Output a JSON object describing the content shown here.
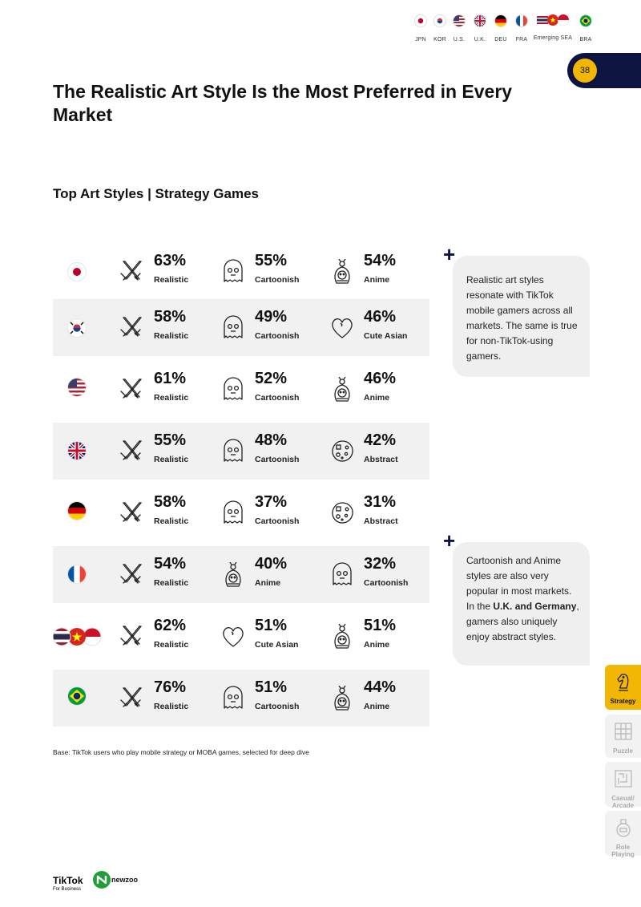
{
  "legend": {
    "items": [
      {
        "code": "JPN"
      },
      {
        "code": "KOR"
      },
      {
        "code": "U.S."
      },
      {
        "code": "U.K."
      },
      {
        "code": "DEU"
      },
      {
        "code": "FRA"
      },
      {
        "code": "Emerging SEA"
      },
      {
        "code": "BRA"
      }
    ]
  },
  "page": {
    "number": "38"
  },
  "title": "The Realistic Art Style Is the Most Preferred in Every Market",
  "subtitle": "Top Art Styles | Strategy Games",
  "rows": [
    {
      "country": "JPN",
      "cells": [
        {
          "pct": "63%",
          "label": "Realistic",
          "icon": "swords-icon"
        },
        {
          "pct": "55%",
          "label": "Cartoonish",
          "icon": "ghost-icon"
        },
        {
          "pct": "54%",
          "label": "Anime",
          "icon": "anime-character-icon"
        }
      ]
    },
    {
      "country": "KOR",
      "cells": [
        {
          "pct": "58%",
          "label": "Realistic",
          "icon": "swords-icon"
        },
        {
          "pct": "49%",
          "label": "Cartoonish",
          "icon": "ghost-icon"
        },
        {
          "pct": "46%",
          "label": "Cute Asian",
          "icon": "heart-icon"
        }
      ]
    },
    {
      "country": "U.S.",
      "cells": [
        {
          "pct": "61%",
          "label": "Realistic",
          "icon": "swords-icon"
        },
        {
          "pct": "52%",
          "label": "Cartoonish",
          "icon": "ghost-icon"
        },
        {
          "pct": "46%",
          "label": "Anime",
          "icon": "anime-character-icon"
        }
      ]
    },
    {
      "country": "U.K.",
      "cells": [
        {
          "pct": "55%",
          "label": "Realistic",
          "icon": "swords-icon"
        },
        {
          "pct": "48%",
          "label": "Cartoonish",
          "icon": "ghost-icon"
        },
        {
          "pct": "42%",
          "label": "Abstract",
          "icon": "abstract-palette-icon"
        }
      ]
    },
    {
      "country": "DEU",
      "cells": [
        {
          "pct": "58%",
          "label": "Realistic",
          "icon": "swords-icon"
        },
        {
          "pct": "37%",
          "label": "Cartoonish",
          "icon": "ghost-icon"
        },
        {
          "pct": "31%",
          "label": "Abstract",
          "icon": "abstract-palette-icon"
        }
      ]
    },
    {
      "country": "FRA",
      "cells": [
        {
          "pct": "54%",
          "label": "Realistic",
          "icon": "swords-icon"
        },
        {
          "pct": "40%",
          "label": "Anime",
          "icon": "anime-character-icon"
        },
        {
          "pct": "32%",
          "label": "Cartoonish",
          "icon": "ghost-icon"
        }
      ]
    },
    {
      "country": "Emerging SEA",
      "cells": [
        {
          "pct": "62%",
          "label": "Realistic",
          "icon": "swords-icon"
        },
        {
          "pct": "51%",
          "label": "Cute Asian",
          "icon": "heart-icon"
        },
        {
          "pct": "51%",
          "label": "Anime",
          "icon": "anime-character-icon"
        }
      ]
    },
    {
      "country": "BRA",
      "cells": [
        {
          "pct": "76%",
          "label": "Realistic",
          "icon": "swords-icon"
        },
        {
          "pct": "51%",
          "label": "Cartoonish",
          "icon": "ghost-icon"
        },
        {
          "pct": "44%",
          "label": "Anime",
          "icon": "anime-character-icon"
        }
      ]
    }
  ],
  "callouts": {
    "first": {
      "text": "Realistic art styles resonate with TikTok mobile gamers across all markets. The same is true for non-TikTok-using gamers."
    },
    "second": {
      "text_before": "Cartoonish and Anime styles are also very popular in most markets. In the ",
      "bold": "U.K. and Germany",
      "text_after": ", gamers also uniquely enjoy abstract styles."
    }
  },
  "base_note": "Base: TikTok users who play mobile strategy or MOBA games, selected for deep dive",
  "side_nav": {
    "items": [
      {
        "label": "Strategy",
        "active": true
      },
      {
        "label": "Puzzle",
        "active": false
      },
      {
        "label": "Casual/ Arcade",
        "active": false
      },
      {
        "label": "Role Playing",
        "active": false
      }
    ]
  },
  "footer": {
    "tiktok_name": "TikTok",
    "tiktok_sub": "For Business",
    "newzoo": "newzoo"
  },
  "colors": {
    "navy": "#0d1442",
    "accent_yellow": "#f2b705",
    "row_shade": "#f1f1f1",
    "newzoo_green": "#1f9e3a"
  }
}
